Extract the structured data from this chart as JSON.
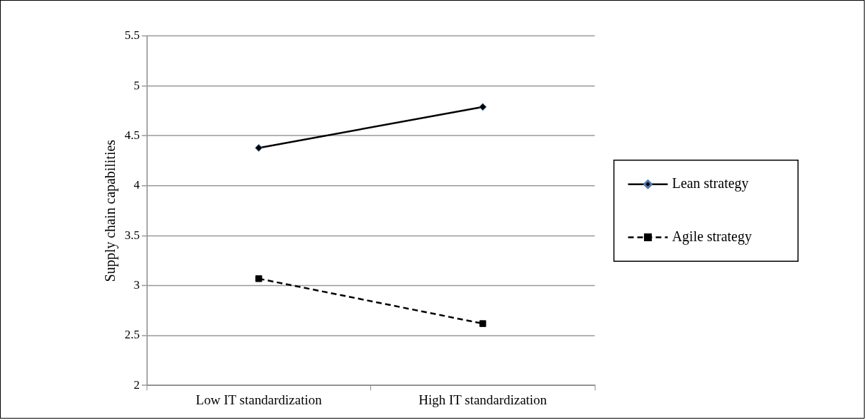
{
  "chart_data": {
    "type": "line",
    "ylabel": "Supply chain capabilities",
    "categories": [
      "Low IT standardization",
      "High IT standardization"
    ],
    "series": [
      {
        "name": "Lean strategy",
        "color": "#000000",
        "values": [
          4.38,
          4.79
        ],
        "marker": "diamond",
        "line_style": "solid"
      },
      {
        "name": "Agile strategy",
        "color": "#000000",
        "values": [
          3.07,
          2.62
        ],
        "marker": "square",
        "line_style": "dashed"
      }
    ],
    "ylim": [
      2,
      5.5
    ],
    "yticks": [
      2,
      2.5,
      3,
      3.5,
      4,
      4.5,
      5,
      5.5
    ],
    "grid": "y",
    "legend": "right"
  }
}
